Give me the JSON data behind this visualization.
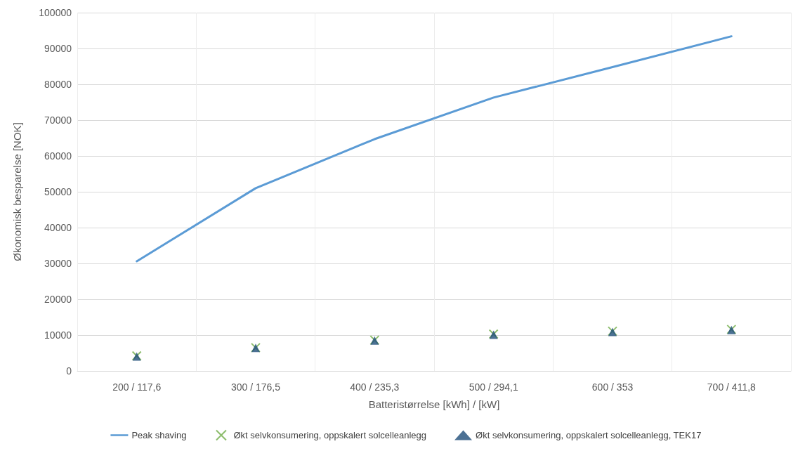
{
  "chart_data": {
    "type": "line",
    "xlabel": "Batteristørrelse [kWh] / [kW]",
    "ylabel": "Økonomisk besparelse [NOK]",
    "categories": [
      "200 / 117,6",
      "300 / 176,5",
      "400 / 235,3",
      "500 / 294,1",
      "600 / 353",
      "700 / 411,8"
    ],
    "series": [
      {
        "name": "Peak shaving",
        "color": "#5b9bd5",
        "marker": "none",
        "values": [
          30600,
          51000,
          64700,
          76300,
          84800,
          93400
        ]
      },
      {
        "name": "Økt selvkonsumering, oppskalert solcelleanlegg",
        "type": "scatter",
        "color": "#70ad47",
        "marker": "cross",
        "values": [
          4200,
          6500,
          8600,
          10300,
          11100,
          11600
        ]
      },
      {
        "name": "Økt selvkonsumering, oppskalert solcelleanlegg, TEK17",
        "type": "scatter",
        "color": "#1f4e79",
        "marker": "triangle",
        "values": [
          4000,
          6400,
          8500,
          10100,
          10900,
          11400
        ]
      }
    ],
    "ylim": [
      0,
      100000
    ],
    "yticks": [
      0,
      10000,
      20000,
      30000,
      40000,
      50000,
      60000,
      70000,
      80000,
      90000,
      100000
    ],
    "grid": true,
    "legend": "bottom"
  }
}
